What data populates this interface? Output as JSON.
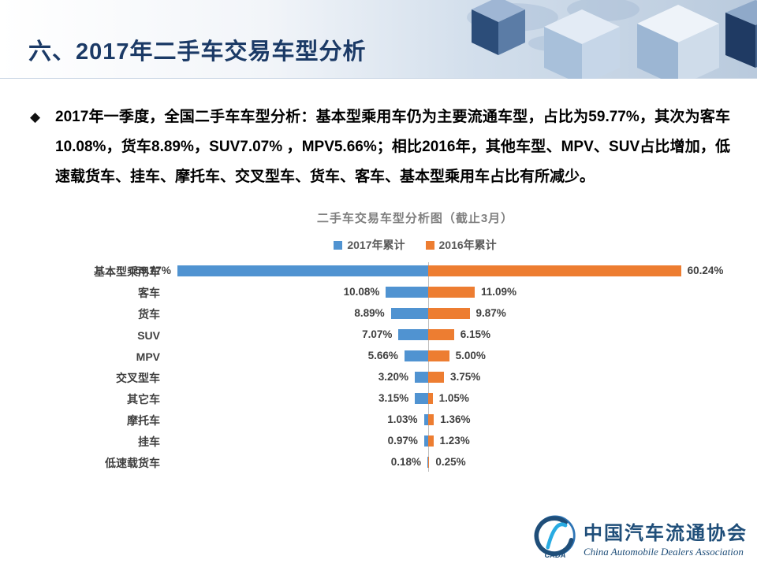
{
  "slide": {
    "title": "六、2017年二手车交易车型分析"
  },
  "bullet": {
    "marker": "◆",
    "text": "2017年一季度，全国二手车车型分析：基本型乘用车仍为主要流通车型，占比为59.77%，其次为客车10.08%，货车8.89%，SUV7.07% ，MPV5.66%；相比2016年，其他车型、MPV、SUV占比增加，低速载货车、挂车、摩托车、交叉型车、货车、客车、基本型乘用车占比有所减少。"
  },
  "chart_data": {
    "type": "bar",
    "variant": "diverging-horizontal",
    "title": "二手车交易车型分析图（截止3月）",
    "legend_position": "top",
    "grid": false,
    "xlim": [
      0,
      62
    ],
    "categories": [
      "基本型乘用车",
      "客车",
      "货车",
      "SUV",
      "MPV",
      "交叉型车",
      "其它车",
      "摩托车",
      "挂车",
      "低速载货车"
    ],
    "series": [
      {
        "name": "2017年累计",
        "color": "#5093D1",
        "direction": "left",
        "values": [
          59.77,
          10.08,
          8.89,
          7.07,
          5.66,
          3.2,
          3.15,
          1.03,
          0.97,
          0.18
        ],
        "labels": [
          "59.77%",
          "10.08%",
          "8.89%",
          "7.07%",
          "5.66%",
          "3.20%",
          "3.15%",
          "1.03%",
          "0.97%",
          "0.18%"
        ]
      },
      {
        "name": "2016年累计",
        "color": "#ED7D31",
        "direction": "right",
        "values": [
          60.24,
          11.09,
          9.87,
          6.15,
          5.0,
          3.75,
          1.05,
          1.36,
          1.23,
          0.25
        ],
        "labels": [
          "60.24%",
          "11.09%",
          "9.87%",
          "6.15%",
          "5.00%",
          "3.75%",
          "1.05%",
          "1.36%",
          "1.23%",
          "0.25%"
        ]
      }
    ]
  },
  "footer": {
    "org_cn": "中国汽车流通协会",
    "org_en": "China Automobile Dealers Association",
    "logo_text": "CADA"
  },
  "colors": {
    "title": "#1b3a66",
    "axis_line": "#bfbfbf",
    "series_2017": "#5093D1",
    "series_2016": "#ED7D31"
  }
}
